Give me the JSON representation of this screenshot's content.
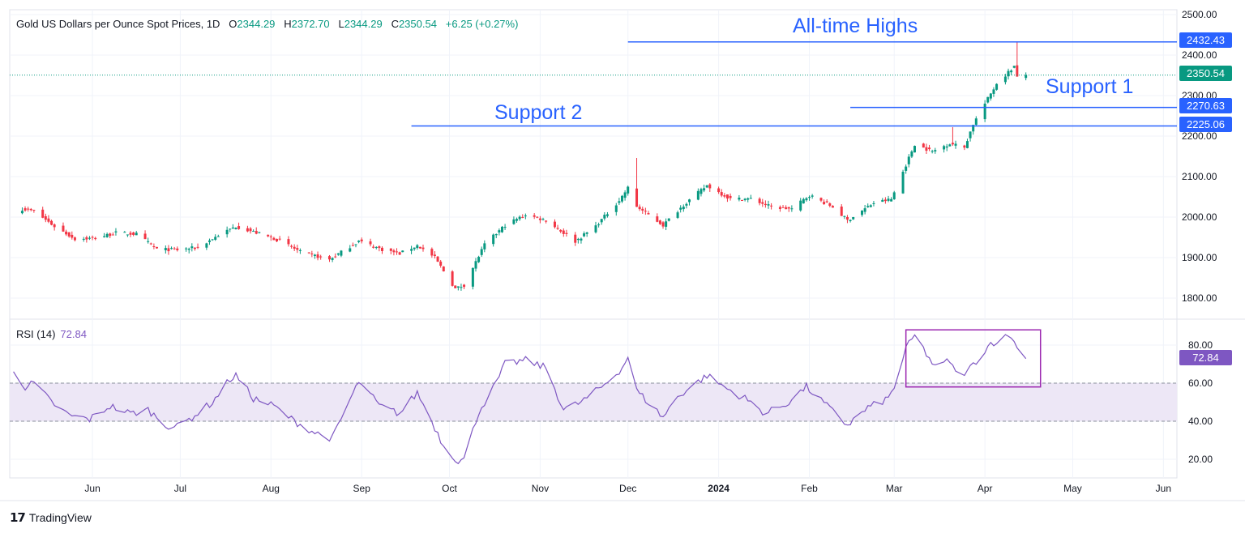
{
  "header": {
    "symbol": "Gold US Dollars per Ounce Spot Prices, 1D",
    "open_label": "O",
    "open": "2344.29",
    "high_label": "H",
    "high": "2372.70",
    "low_label": "L",
    "low": "2344.29",
    "close_label": "C",
    "close": "2350.54",
    "change": "+6.25 (+0.27%)"
  },
  "rsi": {
    "label": "RSI (14)",
    "value": "72.84"
  },
  "annotations": {
    "all_time_highs": "All-time Highs",
    "support1": "Support 1",
    "support2": "Support 2"
  },
  "price_tags": {
    "ath": "2432.43",
    "last": "2350.54",
    "support1": "2270.63",
    "support2": "2225.06"
  },
  "brand": {
    "name": "TradingView"
  },
  "colors": {
    "up": "#089981",
    "down": "#f23645",
    "level": "#2962ff",
    "rsi": "#7e57c2",
    "last_price": "#089981",
    "rsi_band": "#ede7f6"
  },
  "chart_data": [
    {
      "type": "candlestick",
      "title": "Gold US Dollars per Ounce Spot Prices, 1D",
      "y_ticks": [
        1800,
        1900,
        2000,
        2100,
        2200,
        2300,
        2400,
        2500
      ],
      "x_ticks": [
        "Jun",
        "Jul",
        "Aug",
        "Sep",
        "Oct",
        "Nov",
        "Dec",
        "2024",
        "Feb",
        "Mar",
        "Apr",
        "May",
        "Jun"
      ],
      "y_range": [
        1745,
        2500
      ],
      "levels": [
        {
          "name": "All-time Highs",
          "value": 2432.43,
          "from": "2023-12-01"
        },
        {
          "name": "Support 1",
          "value": 2270.63,
          "from": "2024-02-15"
        },
        {
          "name": "Support 2",
          "value": 2225.06,
          "from": "2023-09-18"
        }
      ],
      "last_price": 2350.54,
      "anchors": [
        {
          "date": "2023-05-08",
          "close": 2020
        },
        {
          "date": "2023-05-12",
          "close": 2015
        },
        {
          "date": "2023-05-19",
          "close": 1977
        },
        {
          "date": "2023-05-26",
          "close": 1946
        },
        {
          "date": "2023-06-02",
          "close": 1948
        },
        {
          "date": "2023-06-09",
          "close": 1961
        },
        {
          "date": "2023-06-16",
          "close": 1958
        },
        {
          "date": "2023-06-23",
          "close": 1921
        },
        {
          "date": "2023-06-30",
          "close": 1919
        },
        {
          "date": "2023-07-07",
          "close": 1925
        },
        {
          "date": "2023-07-14",
          "close": 1955
        },
        {
          "date": "2023-07-20",
          "close": 1977
        },
        {
          "date": "2023-07-28",
          "close": 1959
        },
        {
          "date": "2023-08-04",
          "close": 1942
        },
        {
          "date": "2023-08-11",
          "close": 1914
        },
        {
          "date": "2023-08-21",
          "close": 1895
        },
        {
          "date": "2023-08-31",
          "close": 1941
        },
        {
          "date": "2023-09-08",
          "close": 1920
        },
        {
          "date": "2023-09-14",
          "close": 1910
        },
        {
          "date": "2023-09-20",
          "close": 1930
        },
        {
          "date": "2023-09-26",
          "close": 1900
        },
        {
          "date": "2023-10-03",
          "close": 1823
        },
        {
          "date": "2023-10-06",
          "close": 1832
        },
        {
          "date": "2023-10-13",
          "close": 1932
        },
        {
          "date": "2023-10-20",
          "close": 1980
        },
        {
          "date": "2023-10-27",
          "close": 2006
        },
        {
          "date": "2023-11-03",
          "close": 1992
        },
        {
          "date": "2023-11-13",
          "close": 1940
        },
        {
          "date": "2023-11-20",
          "close": 1978
        },
        {
          "date": "2023-11-28",
          "close": 2041
        },
        {
          "date": "2023-12-01",
          "close": 2072
        },
        {
          "date": "2023-12-04",
          "close": 2026
        },
        {
          "date": "2023-12-13",
          "close": 1980
        },
        {
          "date": "2023-12-20",
          "close": 2030
        },
        {
          "date": "2023-12-28",
          "close": 2078
        },
        {
          "date": "2024-01-05",
          "close": 2045
        },
        {
          "date": "2024-01-12",
          "close": 2045
        },
        {
          "date": "2024-01-19",
          "close": 2025
        },
        {
          "date": "2024-01-26",
          "close": 2020
        },
        {
          "date": "2024-02-01",
          "close": 2054
        },
        {
          "date": "2024-02-09",
          "close": 2025
        },
        {
          "date": "2024-02-14",
          "close": 1992
        },
        {
          "date": "2024-02-23",
          "close": 2035
        },
        {
          "date": "2024-02-29",
          "close": 2044
        },
        {
          "date": "2024-03-08",
          "close": 2180
        },
        {
          "date": "2024-03-14",
          "close": 2162
        },
        {
          "date": "2024-03-20",
          "close": 2182
        },
        {
          "date": "2024-03-25",
          "close": 2172
        },
        {
          "date": "2024-03-28",
          "close": 2230
        },
        {
          "date": "2024-04-05",
          "close": 2330
        },
        {
          "date": "2024-04-11",
          "close": 2372
        },
        {
          "date": "2024-04-12",
          "close": 2344
        },
        {
          "date": "2024-04-15",
          "close": 2350.54
        }
      ]
    },
    {
      "type": "line",
      "title": "RSI (14)",
      "y_ticks": [
        20,
        40,
        60,
        80
      ],
      "y_range": [
        12,
        92
      ],
      "band": [
        40,
        60
      ],
      "last_value": 72.84,
      "highlight_box": {
        "from": "2024-03-05",
        "to": "2024-04-20",
        "y_range": [
          58,
          88
        ]
      },
      "anchors": [
        {
          "date": "2023-05-05",
          "value": 67
        },
        {
          "date": "2023-05-09",
          "value": 58
        },
        {
          "date": "2023-05-12",
          "value": 60
        },
        {
          "date": "2023-05-18",
          "value": 50
        },
        {
          "date": "2023-05-24",
          "value": 43
        },
        {
          "date": "2023-05-31",
          "value": 41
        },
        {
          "date": "2023-06-07",
          "value": 48
        },
        {
          "date": "2023-06-14",
          "value": 44
        },
        {
          "date": "2023-06-20",
          "value": 46
        },
        {
          "date": "2023-06-26",
          "value": 38
        },
        {
          "date": "2023-06-30",
          "value": 37
        },
        {
          "date": "2023-07-05",
          "value": 42
        },
        {
          "date": "2023-07-12",
          "value": 50
        },
        {
          "date": "2023-07-18",
          "value": 62
        },
        {
          "date": "2023-07-20",
          "value": 64
        },
        {
          "date": "2023-07-26",
          "value": 52
        },
        {
          "date": "2023-08-02",
          "value": 48
        },
        {
          "date": "2023-08-09",
          "value": 40
        },
        {
          "date": "2023-08-16",
          "value": 34
        },
        {
          "date": "2023-08-22",
          "value": 31
        },
        {
          "date": "2023-08-30",
          "value": 58
        },
        {
          "date": "2023-09-01",
          "value": 60
        },
        {
          "date": "2023-09-07",
          "value": 48
        },
        {
          "date": "2023-09-14",
          "value": 44
        },
        {
          "date": "2023-09-20",
          "value": 55
        },
        {
          "date": "2023-09-25",
          "value": 40
        },
        {
          "date": "2023-09-29",
          "value": 27
        },
        {
          "date": "2023-10-04",
          "value": 19
        },
        {
          "date": "2023-10-06",
          "value": 20
        },
        {
          "date": "2023-10-11",
          "value": 45
        },
        {
          "date": "2023-10-17",
          "value": 60
        },
        {
          "date": "2023-10-20",
          "value": 70
        },
        {
          "date": "2023-10-27",
          "value": 72
        },
        {
          "date": "2023-11-03",
          "value": 68
        },
        {
          "date": "2023-11-09",
          "value": 46
        },
        {
          "date": "2023-11-15",
          "value": 50
        },
        {
          "date": "2023-11-22",
          "value": 58
        },
        {
          "date": "2023-11-29",
          "value": 68
        },
        {
          "date": "2023-12-01",
          "value": 74
        },
        {
          "date": "2023-12-04",
          "value": 56
        },
        {
          "date": "2023-12-13",
          "value": 42
        },
        {
          "date": "2023-12-18",
          "value": 53
        },
        {
          "date": "2023-12-28",
          "value": 64
        },
        {
          "date": "2024-01-04",
          "value": 57
        },
        {
          "date": "2024-01-10",
          "value": 52
        },
        {
          "date": "2024-01-17",
          "value": 44
        },
        {
          "date": "2024-01-24",
          "value": 49
        },
        {
          "date": "2024-01-31",
          "value": 58
        },
        {
          "date": "2024-02-07",
          "value": 48
        },
        {
          "date": "2024-02-14",
          "value": 38
        },
        {
          "date": "2024-02-21",
          "value": 47
        },
        {
          "date": "2024-02-28",
          "value": 52
        },
        {
          "date": "2024-03-01",
          "value": 58
        },
        {
          "date": "2024-03-05",
          "value": 78
        },
        {
          "date": "2024-03-08",
          "value": 85
        },
        {
          "date": "2024-03-13",
          "value": 73
        },
        {
          "date": "2024-03-15",
          "value": 68
        },
        {
          "date": "2024-03-20",
          "value": 72
        },
        {
          "date": "2024-03-22",
          "value": 65
        },
        {
          "date": "2024-03-26",
          "value": 66
        },
        {
          "date": "2024-03-28",
          "value": 70
        },
        {
          "date": "2024-04-03",
          "value": 81
        },
        {
          "date": "2024-04-08",
          "value": 84
        },
        {
          "date": "2024-04-10",
          "value": 85
        },
        {
          "date": "2024-04-12",
          "value": 78
        },
        {
          "date": "2024-04-15",
          "value": 72.84
        }
      ]
    }
  ]
}
